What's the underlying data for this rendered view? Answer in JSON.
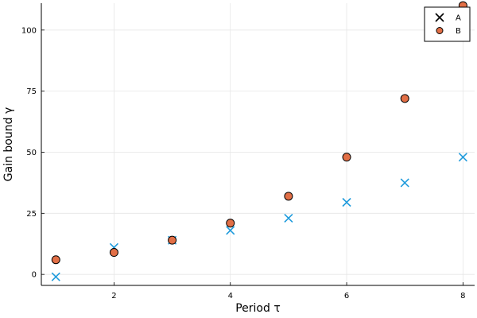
{
  "chart_data": {
    "type": "scatter",
    "title": "",
    "xlabel": "Period τ",
    "ylabel": "Gain bound γ",
    "xlim": [
      0.75,
      8.2
    ],
    "ylim": [
      -4.5,
      111
    ],
    "xticks": [
      2,
      4,
      6,
      8
    ],
    "yticks": [
      0,
      25,
      50,
      75,
      100
    ],
    "xtick_labels": [
      "2",
      "4",
      "6",
      "8"
    ],
    "ytick_labels": [
      "0",
      "25",
      "50",
      "75",
      "100"
    ],
    "grid": true,
    "legend_position": "top-right",
    "series": [
      {
        "name": "A",
        "marker": "x",
        "color": "#1f9bdc",
        "legend_color": "#000000",
        "x": [
          1,
          2,
          3,
          4,
          5,
          6,
          7,
          8
        ],
        "y": [
          -1,
          11,
          14,
          18,
          23,
          29.5,
          37.5,
          48
        ]
      },
      {
        "name": "B",
        "marker": "circle",
        "color": "#e26f46",
        "x": [
          1,
          2,
          3,
          4,
          5,
          6,
          7,
          8
        ],
        "y": [
          6,
          9,
          14,
          21,
          32,
          48,
          72,
          110
        ]
      }
    ]
  }
}
